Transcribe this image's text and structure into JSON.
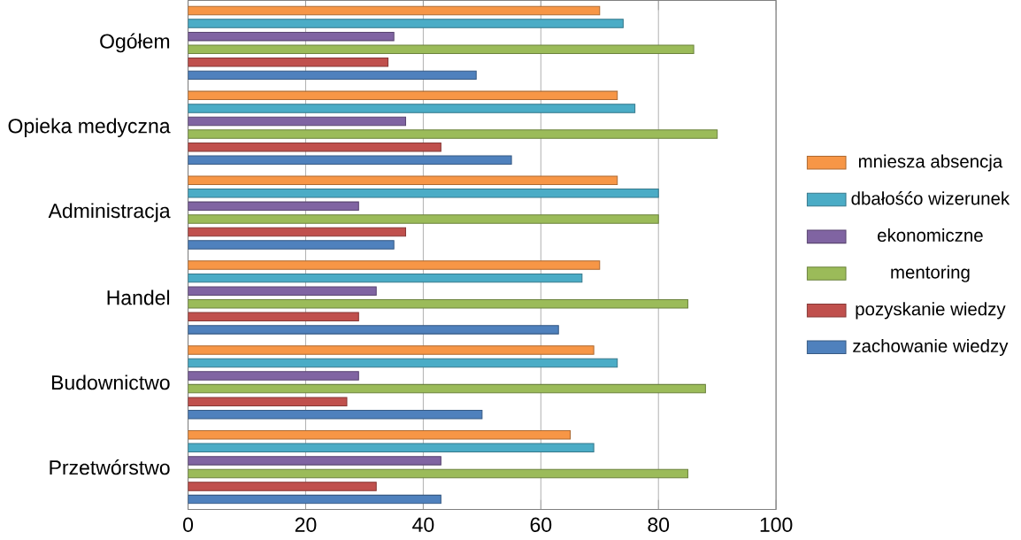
{
  "chart_data": {
    "type": "bar",
    "orientation": "horizontal",
    "categories": [
      "Ogółem",
      "Opieka medyczna",
      "Administracja",
      "Handel",
      "Budownictwo",
      "Przetwórstwo"
    ],
    "series": [
      {
        "name": "mniesza absencja",
        "color": "#f79646",
        "values": [
          70,
          73,
          73,
          70,
          69,
          65
        ]
      },
      {
        "name": "dbałośćo wizerunek",
        "color": "#4bacc6",
        "values": [
          74,
          76,
          80,
          67,
          73,
          69
        ]
      },
      {
        "name": "ekonomiczne",
        "color": "#8064a2",
        "values": [
          35,
          37,
          29,
          32,
          29,
          43
        ]
      },
      {
        "name": "mentoring",
        "color": "#9bbb59",
        "values": [
          86,
          90,
          80,
          85,
          88,
          85
        ]
      },
      {
        "name": "pozyskanie wiedzy",
        "color": "#c0504d",
        "values": [
          34,
          43,
          37,
          29,
          27,
          32
        ]
      },
      {
        "name": "zachowanie wiedzy",
        "color": "#4f81bd",
        "values": [
          49,
          55,
          35,
          63,
          50,
          43
        ]
      }
    ],
    "xlim": [
      0,
      100
    ],
    "xticks": [
      0,
      20,
      40,
      60,
      80,
      100
    ],
    "grid": "x",
    "legend": "right"
  }
}
